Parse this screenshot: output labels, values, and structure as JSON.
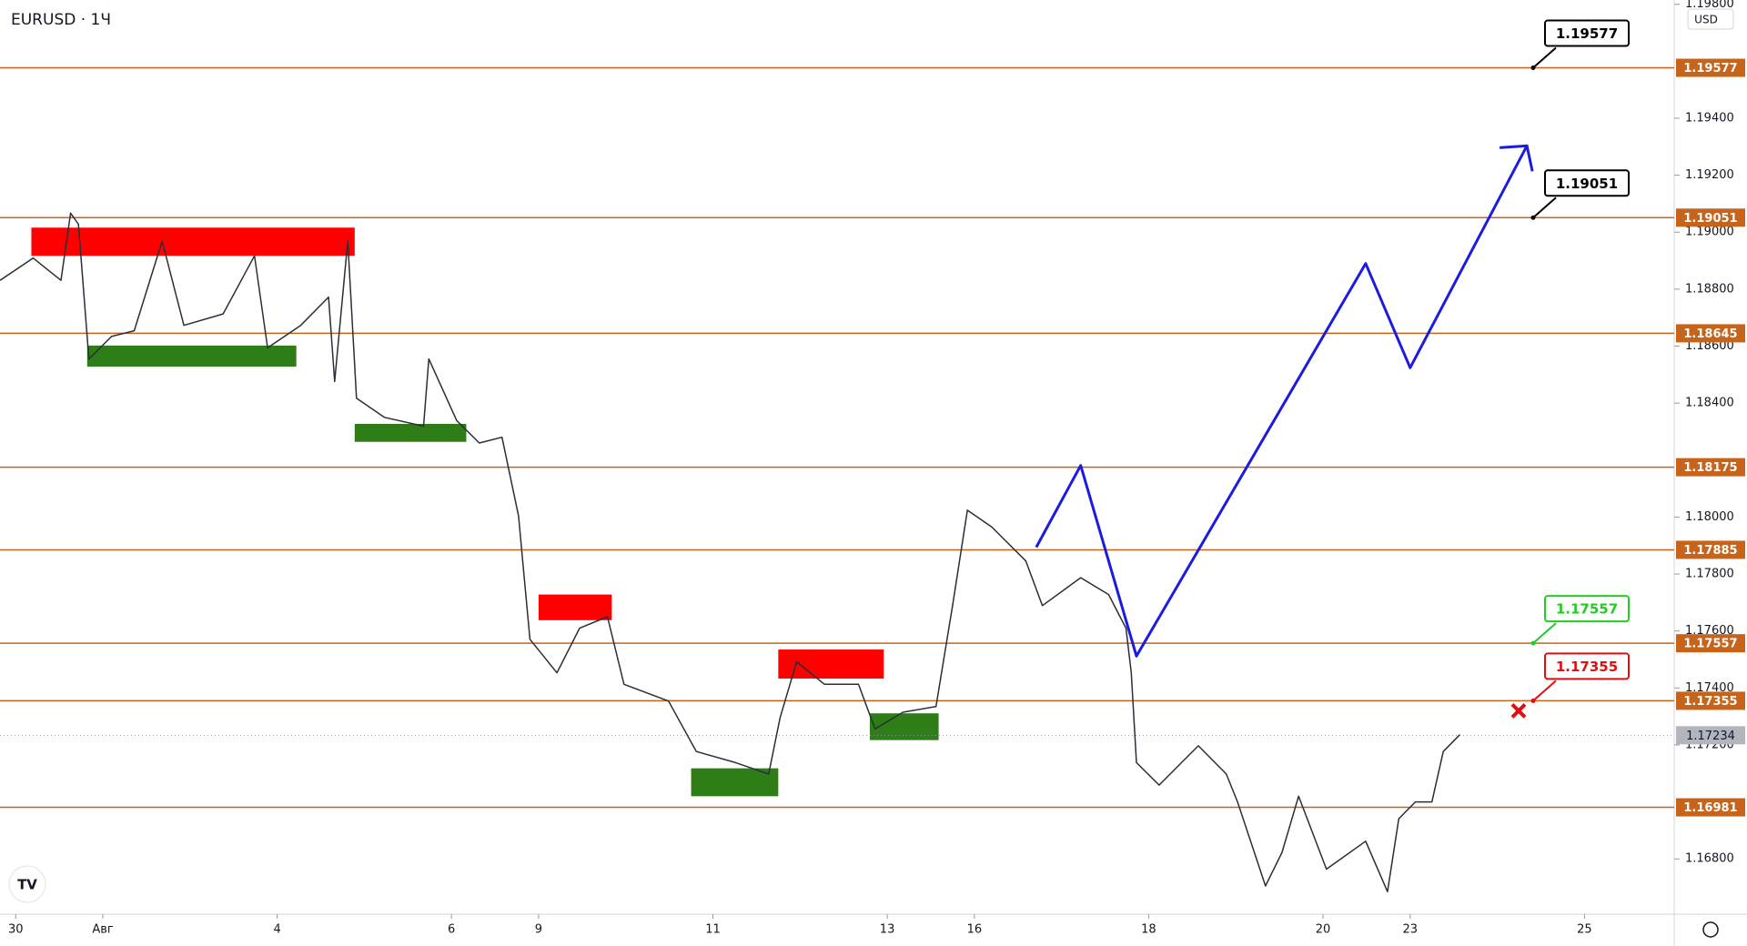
{
  "chart_data": {
    "type": "line",
    "title": "EURUSD · 1Ч",
    "currency": "USD",
    "xlim": [
      -0.18,
      19.03
    ],
    "ylim": [
      1.16606,
      1.19815
    ],
    "xticks": [
      {
        "value": 0,
        "label": "30"
      },
      {
        "value": 1,
        "label": "Авг"
      },
      {
        "value": 3,
        "label": "4"
      },
      {
        "value": 5,
        "label": "6"
      },
      {
        "value": 6,
        "label": "9"
      },
      {
        "value": 8,
        "label": "11"
      },
      {
        "value": 10,
        "label": "13"
      },
      {
        "value": 11,
        "label": "16"
      },
      {
        "value": 13,
        "label": "18"
      },
      {
        "value": 15,
        "label": "20"
      },
      {
        "value": 16,
        "label": "23"
      },
      {
        "value": 18,
        "label": "25"
      }
    ],
    "yticks": [
      {
        "value": 1.198,
        "label": "1.19800"
      },
      {
        "value": 1.194,
        "label": "1.19400"
      },
      {
        "value": 1.192,
        "label": "1.19200"
      },
      {
        "value": 1.19,
        "label": "1.19000"
      },
      {
        "value": 1.188,
        "label": "1.18800"
      },
      {
        "value": 1.186,
        "label": "1.18600"
      },
      {
        "value": 1.184,
        "label": "1.18400"
      },
      {
        "value": 1.18,
        "label": "1.18000"
      },
      {
        "value": 1.178,
        "label": "1.17800"
      },
      {
        "value": 1.176,
        "label": "1.17600"
      },
      {
        "value": 1.174,
        "label": "1.17400"
      },
      {
        "value": 1.172,
        "label": "1.17200"
      },
      {
        "value": 1.168,
        "label": "1.16800"
      }
    ],
    "series": [
      {
        "name": "EURUSD",
        "color": "#2a2e39",
        "x": [
          -0.18,
          0.2,
          0.52,
          0.63,
          0.72,
          0.84,
          1.1,
          1.36,
          1.68,
          1.93,
          2.38,
          2.74,
          2.89,
          3.27,
          3.59,
          3.66,
          3.81,
          3.91,
          4.23,
          4.68,
          4.74,
          5.06,
          5.32,
          5.58,
          5.77,
          5.9,
          6.21,
          6.47,
          6.79,
          6.98,
          7.49,
          7.81,
          8.26,
          8.64,
          8.77,
          8.96,
          9.28,
          9.67,
          9.86,
          10.18,
          10.56,
          10.75,
          10.92,
          11.2,
          11.59,
          11.78,
          12.22,
          12.54,
          12.74,
          12.8,
          12.86,
          13.12,
          13.57,
          13.89,
          14.02,
          14.34,
          14.53,
          14.72,
          15.04,
          15.49,
          15.74,
          15.87,
          16.06,
          16.25,
          16.38,
          16.57
        ],
        "values": [
          1.18831,
          1.18909,
          1.18831,
          1.19067,
          1.19028,
          1.18555,
          1.18634,
          1.18654,
          1.18969,
          1.18673,
          1.18713,
          1.18917,
          1.18594,
          1.18673,
          1.18772,
          1.18476,
          1.18969,
          1.18417,
          1.1835,
          1.18319,
          1.18555,
          1.18339,
          1.1826,
          1.1828,
          1.18004,
          1.17571,
          1.17453,
          1.1761,
          1.1765,
          1.17413,
          1.17354,
          1.17177,
          1.17138,
          1.17098,
          1.17295,
          1.17492,
          1.17413,
          1.17413,
          1.17256,
          1.17315,
          1.17335,
          1.17689,
          1.18024,
          1.17965,
          1.17846,
          1.17689,
          1.17787,
          1.17728,
          1.1761,
          1.17453,
          1.17138,
          1.17059,
          1.17197,
          1.17098,
          1.17,
          1.16705,
          1.16823,
          1.1702,
          1.16764,
          1.16862,
          1.16685,
          1.16941,
          1.17,
          1.17,
          1.17177,
          1.17236
        ]
      },
      {
        "name": "Projection",
        "color": "#1c1ce0",
        "x": [
          11.71,
          12.22,
          12.86,
          15.49,
          16.0,
          17.34
        ],
        "values": [
          1.17894,
          1.18181,
          1.17512,
          1.1889,
          1.18524,
          1.19303
        ]
      }
    ],
    "zones": [
      {
        "color": "#ff0000",
        "x0": 0.18,
        "x1": 3.89,
        "y0": 1.18917,
        "y1": 1.19016
      },
      {
        "color": "#ff0000",
        "x0": 6.0,
        "x1": 6.84,
        "y0": 1.17638,
        "y1": 1.17728
      },
      {
        "color": "#ff0000",
        "x0": 8.75,
        "x1": 9.96,
        "y0": 1.17433,
        "y1": 1.17535
      },
      {
        "color": "#2e7d17",
        "x0": 0.82,
        "x1": 3.22,
        "y0": 1.18528,
        "y1": 1.18602
      },
      {
        "color": "#2e7d17",
        "x0": 3.89,
        "x1": 5.17,
        "y0": 1.18264,
        "y1": 1.18327
      },
      {
        "color": "#2e7d17",
        "x0": 7.75,
        "x1": 8.75,
        "y0": 1.1702,
        "y1": 1.17118
      },
      {
        "color": "#2e7d17",
        "x0": 9.8,
        "x1": 10.59,
        "y0": 1.17217,
        "y1": 1.17311
      }
    ],
    "levels": [
      {
        "value": 1.19577,
        "callout_color": "#000000"
      },
      {
        "value": 1.19051,
        "callout_color": "#000000"
      },
      {
        "value": 1.18645
      },
      {
        "value": 1.18175
      },
      {
        "value": 1.17885
      },
      {
        "value": 1.17557,
        "callout_color": "#22cc22"
      },
      {
        "value": 1.17355,
        "callout_color": "#e01010"
      },
      {
        "value": 1.16981
      }
    ],
    "level_color": "#c8641a",
    "last_price": 1.17234
  }
}
